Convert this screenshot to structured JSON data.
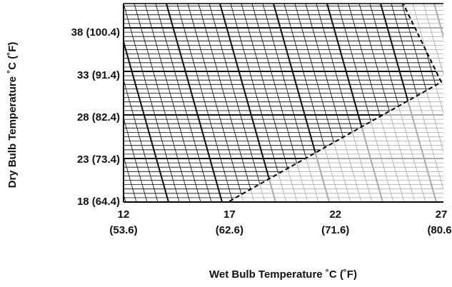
{
  "chart_data": {
    "type": "line",
    "x_label": "Wet Bulb Temperature ˚C (˚F)",
    "y_label": "Dry Bulb Temperature ˚C (˚F)",
    "x": [
      17.0,
      21.6,
      27.0,
      25.2
    ],
    "series": [
      {
        "color": "#000000",
        "dashed": true,
        "values": [
          18.1,
          24.6,
          32.2,
          41.5
        ]
      }
    ],
    "xlim": [
      12,
      27.1
    ],
    "ylim": [
      18,
      41.5
    ],
    "xticks": [
      {
        "value": 12,
        "label": "12\n(53.6)"
      },
      {
        "value": 17,
        "label": "17\n(62.6)"
      },
      {
        "value": 22,
        "label": "22\n(71.6)"
      },
      {
        "value": 27,
        "label": "27\n(80.6)"
      }
    ],
    "yticks": [
      {
        "value": 18,
        "label": "18 (64.4)"
      },
      {
        "value": 23,
        "label": "23 (73.4)"
      },
      {
        "value": 28,
        "label": "28 (82.4)"
      },
      {
        "value": 33,
        "label": "33 (91.4)"
      },
      {
        "value": 38,
        "label": "38 (100.4)"
      }
    ]
  }
}
